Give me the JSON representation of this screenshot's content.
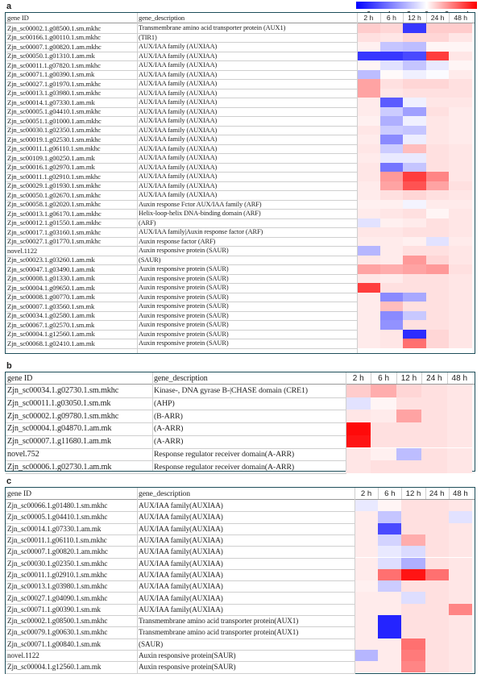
{
  "legend": {
    "ticks": [
      "−6",
      "−4",
      "−2",
      "0",
      "2",
      "4"
    ],
    "tick_values": [
      -6,
      -4,
      -2,
      0,
      2,
      4
    ],
    "min": -7,
    "max": 5
  },
  "colors": {
    "neg": "#0000ff",
    "pos": "#ff0000",
    "neutral": "#ffffff"
  },
  "chart_data": [
    {
      "type": "heatmap",
      "panel": "a",
      "header": {
        "gene_id": "gene ID",
        "gene_description": "gene_description"
      },
      "columns": [
        "2 h",
        "6 h",
        "12 h",
        "24 h",
        "48 h"
      ],
      "rows": [
        {
          "id": "Zjn_sc00002.1.g08500.1.sm.mkhc",
          "desc": "Transmembrane amino acid transporter protein (AUX1)",
          "values": [
            1.0,
            0.8,
            -5.5,
            1.0,
            1.0
          ]
        },
        {
          "id": "Zjn_sc00166.1.g00110.1.sm.mkhc",
          "desc": "(TIR1)",
          "values": [
            0.6,
            0.5,
            0.8,
            0.8,
            0.5
          ]
        },
        {
          "id": "Zjn_sc00007.1.g00820.1.am.mkhc",
          "desc": "AUX/IAA family (AUXIAA)",
          "values": [
            0.3,
            -1.6,
            -1.8,
            0.2,
            0.2
          ]
        },
        {
          "id": "Zjn_sc00050.1.g01310.1.am.mk",
          "desc": "AUX/IAA family (AUXIAA)",
          "values": [
            -5.5,
            -5.5,
            -5.0,
            3.8,
            0.5
          ]
        },
        {
          "id": "Zjn_sc00011.1.g07820.1.sm.mkhc",
          "desc": "AUX/IAA family (AUXIAA)",
          "values": [
            0.2,
            -0.8,
            -1.6,
            -0.6,
            0.2
          ]
        },
        {
          "id": "Zjn_sc00071.1.g00390.1.sm.mk",
          "desc": "AUX/IAA family (AUXIAA)",
          "values": [
            -1.8,
            0.1,
            -0.4,
            -0.1,
            0.4
          ]
        },
        {
          "id": "Zjn_sc00027.1.g01970.1.sm.mkhc",
          "desc": "AUX/IAA family (AUXIAA)",
          "values": [
            1.8,
            0.6,
            0.8,
            0.8,
            0.6
          ]
        },
        {
          "id": "Zjn_sc00013.1.g03980.1.sm.mkhc",
          "desc": "AUX/IAA family (AUXIAA)",
          "values": [
            1.8,
            0.5,
            0.6,
            0.6,
            0.6
          ]
        },
        {
          "id": "Zjn_sc00014.1.g07330.1.am.mk",
          "desc": "AUX/IAA family (AUXIAA)",
          "values": [
            0.4,
            -4.5,
            -0.4,
            0.5,
            0.5
          ]
        },
        {
          "id": "Zjn_sc00005.1.g04410.1.sm.mkhc",
          "desc": "AUX/IAA family (AUXIAA)",
          "values": [
            0.4,
            -1.4,
            -2.6,
            0.6,
            0.4
          ]
        },
        {
          "id": "Zjn_sc00051.1.g01000.1.am.mkhc",
          "desc": "AUX/IAA family (AUXIAA)",
          "values": [
            0.3,
            -2.2,
            -0.4,
            0.5,
            0.4
          ]
        },
        {
          "id": "Zjn_sc00030.1.g02350.1.sm.mkhc",
          "desc": "AUX/IAA family (AUXIAA)",
          "values": [
            0.5,
            -1.4,
            -1.6,
            0.5,
            0.4
          ]
        },
        {
          "id": "Zjn_sc00019.1.g02530.1.sm.mkhc",
          "desc": "AUX/IAA family (AUXIAA)",
          "values": [
            0.4,
            -3.2,
            -0.5,
            0.5,
            0.4
          ]
        },
        {
          "id": "Zjn_sc00011.1.g06110.1.sm.mkhc",
          "desc": "AUX/IAA family (AUXIAA)",
          "values": [
            0.5,
            -1.4,
            1.3,
            0.6,
            0.5
          ]
        },
        {
          "id": "Zjn_sc00109.1.g00250.1.am.mk",
          "desc": "AUX/IAA family (AUXIAA)",
          "values": [
            0.4,
            -0.6,
            -0.6,
            0.6,
            0.5
          ]
        },
        {
          "id": "Zjn_sc00016.1.g02970.1.am.mk",
          "desc": "AUX/IAA family (AUXIAA)",
          "values": [
            0.5,
            -3.8,
            -1.6,
            0.6,
            0.5
          ]
        },
        {
          "id": "Zjn_sc00011.1.g02910.1.sm.mkhc",
          "desc": "AUX/IAA family (AUXIAA)",
          "values": [
            0.5,
            2.0,
            3.8,
            2.4,
            0.5
          ]
        },
        {
          "id": "Zjn_sc00029.1.g01930.1.sm.mkhc",
          "desc": "AUX/IAA family (AUXIAA)",
          "values": [
            0.4,
            1.8,
            3.4,
            1.8,
            0.6
          ]
        },
        {
          "id": "Zjn_sc00050.1.g02670.1.sm.mkhc",
          "desc": "AUX/IAA family (AUXIAA)",
          "values": [
            0.4,
            0.6,
            0.8,
            0.6,
            0.5
          ]
        },
        {
          "id": "Zjn_sc00058.1.g02020.1.sm.mkhc",
          "desc": "Auxin response Fctor AUX/IAA family (ARF)",
          "values": [
            0.3,
            0.3,
            -0.3,
            0.4,
            0.4
          ]
        },
        {
          "id": "Zjn_sc00013.1.g06170.1.am.mkhc",
          "desc": "Helix-loop-helix DNA-binding domain (ARF)",
          "values": [
            0.4,
            0.5,
            0.6,
            0.2,
            0.5
          ]
        },
        {
          "id": "Zjn_sc00012.1.g01550.1.am.mkhc",
          "desc": "(ARF)",
          "values": [
            -0.8,
            0.3,
            0.4,
            0.6,
            0.5
          ]
        },
        {
          "id": "Zjn_sc00017.1.g03160.1.sm.mkhc",
          "desc": "AUX/IAA family|Auxin response factor (ARF)",
          "values": [
            0.5,
            0.5,
            0.6,
            0.6,
            0.5
          ]
        },
        {
          "id": "Zjn_sc00027.1.g01770.1.sm.mkhc",
          "desc": "Auxin response factor (ARF)",
          "values": [
            0.4,
            0.4,
            0.3,
            -0.8,
            0.4
          ]
        },
        {
          "id": "novel.1122",
          "desc": "Auxin responsive protein (SAUR)",
          "values": [
            -2.0,
            0.4,
            0.6,
            0.6,
            0.5
          ]
        },
        {
          "id": "Zjn_sc00023.1.g03260.1.am.mk",
          "desc": "(SAUR)",
          "values": [
            0.5,
            0.4,
            2.0,
            0.8,
            0.5
          ]
        },
        {
          "id": "Zjn_sc00047.1.g03490.1.am.mk",
          "desc": "Auxin responsive protein (SAUR)",
          "values": [
            1.8,
            1.6,
            1.8,
            2.0,
            0.6
          ]
        },
        {
          "id": "Zjn_sc00008.1.g01330.1.am.mk",
          "desc": "Auxin responsive protein (SAUR)",
          "values": [
            0.5,
            0.4,
            0.6,
            0.6,
            0.5
          ]
        },
        {
          "id": "Zjn_sc00004.1.g09650.1.am.mk",
          "desc": "Auxin responsive protein (SAUR)",
          "values": [
            3.8,
            0.6,
            0.6,
            0.6,
            0.5
          ]
        },
        {
          "id": "Zjn_sc00008.1.g00770.1.am.mk",
          "desc": "Auxin responsive protein (SAUR)",
          "values": [
            0.4,
            -3.2,
            -2.4,
            0.6,
            0.5
          ]
        },
        {
          "id": "Zjn_sc00007.1.g03560.1.sm.mk",
          "desc": "Auxin responsive protein (SAUR)",
          "values": [
            0.4,
            1.3,
            0.6,
            0.6,
            0.5
          ]
        },
        {
          "id": "Zjn_sc00034.1.g02580.1.am.mk",
          "desc": "Auxin responsive protein (SAUR)",
          "values": [
            0.4,
            -3.2,
            -1.5,
            0.6,
            0.5
          ]
        },
        {
          "id": "Zjn_sc00067.1.g02570.1.sm.mk",
          "desc": "Auxin responsive protein (SAUR)",
          "values": [
            0.4,
            -3.0,
            0.6,
            0.6,
            0.5
          ]
        },
        {
          "id": "Zjn_sc00004.1.g12560.1.am.mk",
          "desc": "Auxin responsive protein (SAUR)",
          "values": [
            0.4,
            0.5,
            -5.8,
            0.8,
            0.5
          ]
        },
        {
          "id": "Zjn_sc00068.1.g02410.1.am.mk",
          "desc": "Auxin responsive protein (SAUR)",
          "values": [
            0.4,
            0.5,
            2.8,
            0.8,
            0.5
          ]
        }
      ]
    },
    {
      "type": "heatmap",
      "panel": "b",
      "header": {
        "gene_id": "gene ID",
        "gene_description": "gene_description"
      },
      "columns": [
        "2 h",
        "6 h",
        "12 h",
        "24 h",
        "48 h"
      ],
      "rows": [
        {
          "id": "Zjn_sc00034.1.g02730.1.sm.mkhc",
          "desc": "Kinase-, DNA gyrase B-|CHASE domain (CRE1)",
          "values": [
            1.0,
            1.6,
            0.8,
            0.6,
            0.5
          ]
        },
        {
          "id": "Zjn_sc00011.1.g03050.1.sm.mk",
          "desc": "(AHP)",
          "values": [
            -0.8,
            0.2,
            0.6,
            0.6,
            0.5
          ]
        },
        {
          "id": "Zjn_sc00002.1.g09780.1.sm.mkhc",
          "desc": "(B-ARR)",
          "values": [
            0.5,
            0.4,
            1.8,
            0.6,
            0.5
          ]
        },
        {
          "id": "Zjn_sc00004.1.g04870.1.am.mk",
          "desc": "(A-ARR)",
          "values": [
            4.8,
            0.6,
            0.6,
            0.6,
            0.5
          ]
        },
        {
          "id": "Zjn_sc00007.1.g11680.1.am.mk",
          "desc": "(A-ARR)",
          "values": [
            4.6,
            0.6,
            0.6,
            0.6,
            0.5
          ]
        },
        {
          "id": "novel.752",
          "desc": "Response regulator receiver domain(A-ARR)",
          "values": [
            0.5,
            0.3,
            -1.8,
            0.6,
            0.5
          ]
        },
        {
          "id": "Zjn_sc00006.1.g02730.1.am.mk",
          "desc": "Response regulator receiver domain(A-ARR)",
          "values": [
            0.5,
            0.6,
            0.6,
            0.6,
            0.5
          ]
        }
      ]
    },
    {
      "type": "heatmap",
      "panel": "c",
      "header": {
        "gene_id": "gene ID",
        "gene_description": "gene_description"
      },
      "columns": [
        "2 h",
        "6 h",
        "12 h",
        "24 h",
        "48 h"
      ],
      "rows": [
        {
          "id": "Zjn_sc00066.1.g01480.1.sm.mkhc",
          "desc": "AUX/IAA family(AUXIAA)",
          "values": [
            -0.6,
            0.2,
            0.6,
            0.6,
            0.5
          ]
        },
        {
          "id": "Zjn_sc00005.1.g04410.1.sm.mkhc",
          "desc": "AUX/IAA family(AUXIAA)",
          "values": [
            0.4,
            -1.6,
            0.6,
            0.6,
            -0.8
          ]
        },
        {
          "id": "Zjn_sc00014.1.g07330.1.am.mk",
          "desc": "AUX/IAA family(AUXIAA)",
          "values": [
            0.4,
            -5.0,
            0.6,
            0.6,
            0.5
          ]
        },
        {
          "id": "Zjn_sc00011.1.g06110.1.sm.mkhc",
          "desc": "AUX/IAA family(AUXIAA)",
          "values": [
            0.4,
            -1.2,
            1.6,
            0.6,
            0.5
          ]
        },
        {
          "id": "Zjn_sc00007.1.g00820.1.am.mkhc",
          "desc": "AUX/IAA family(AUXIAA)",
          "values": [
            0.4,
            -0.6,
            -1.0,
            0.6,
            0.5
          ]
        },
        {
          "id": "Zjn_sc00030.1.g02350.1.sm.mkhc",
          "desc": "AUX/IAA family(AUXIAA)",
          "values": [
            0.4,
            -0.9,
            -2.2,
            0.6,
            0.5
          ]
        },
        {
          "id": "Zjn_sc00011.1.g02910.1.sm.mkhc",
          "desc": "AUX/IAA family(AUXIAA)",
          "values": [
            0.4,
            2.8,
            4.6,
            2.8,
            0.5
          ]
        },
        {
          "id": "Zjn_sc00013.1.g03980.1.sm.mkhc",
          "desc": "AUX/IAA family(AUXIAA)",
          "values": [
            0.3,
            -1.4,
            0.6,
            0.6,
            0.5
          ]
        },
        {
          "id": "Zjn_sc00027.1.g04090.1.sm.mkhc",
          "desc": "AUX/IAA family(AUXIAA)",
          "values": [
            0.4,
            0.4,
            -0.9,
            0.6,
            0.5
          ]
        },
        {
          "id": "Zjn_sc00071.1.g00390.1.sm.mk",
          "desc": "AUX/IAA family(AUXIAA)",
          "values": [
            0.4,
            0.4,
            0.6,
            0.6,
            2.4
          ]
        },
        {
          "id": "Zjn_sc00002.1.g08500.1.sm.mkhc",
          "desc": "Transmembrane amino acid transporter protein(AUX1)",
          "values": [
            0.4,
            -6.0,
            0.6,
            0.6,
            0.5
          ]
        },
        {
          "id": "Zjn_sc00079.1.g00630.1.sm.mkhc",
          "desc": "Transmembrane amino acid transporter protein(AUX1)",
          "values": [
            0.4,
            -6.0,
            0.6,
            0.6,
            0.5
          ]
        },
        {
          "id": "Zjn_sc00071.1.g00840.1.sm.mk",
          "desc": "(SAUR)",
          "values": [
            0.4,
            0.4,
            2.8,
            0.6,
            0.5
          ]
        },
        {
          "id": "novel.1122",
          "desc": "Auxin responsive protein(SAUR)",
          "values": [
            -2.0,
            0.4,
            2.6,
            0.6,
            0.5
          ]
        },
        {
          "id": "Zjn_sc00004.1.g12560.1.am.mk",
          "desc": "Auxin responsive protein(SAUR)",
          "values": [
            0.4,
            0.4,
            2.4,
            0.6,
            0.5
          ]
        }
      ]
    }
  ]
}
